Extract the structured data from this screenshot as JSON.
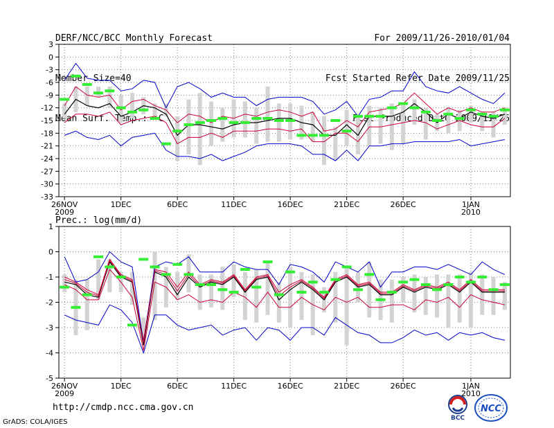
{
  "header": {
    "title": "DERF/NCC/BCC Monthly Forecast",
    "member_size": "Member Size=40",
    "variable1": "Mean Surf. Temp.: °C",
    "period": "For 2009/11/26-2010/01/04",
    "started": "Fcst Started Refer Date 2009/11/25",
    "produced": "Fcst Produced Date 2009/11/26"
  },
  "footer": {
    "url": "http://cmdp.ncc.cma.gov.cn",
    "grads": "GrADS: COLA/IGES",
    "logo_bcc_text": "BCC",
    "logo_ncc_text": "NCC"
  },
  "colors": {
    "envelope": "#0000cc",
    "spread": "#cc0033",
    "mean": "#000000",
    "observed": "#33ee33",
    "box": "#d3d3d3",
    "grid": "#777777"
  },
  "chart_data": [
    {
      "type": "line",
      "title": "Mean Surf. Temp.: °C",
      "x_ticks": [
        {
          "day": 0,
          "label": "26NOV",
          "sub": "2009"
        },
        {
          "day": 5,
          "label": "1DEC"
        },
        {
          "day": 10,
          "label": "6DEC"
        },
        {
          "day": 15,
          "label": "11DEC"
        },
        {
          "day": 20,
          "label": "16DEC"
        },
        {
          "day": 25,
          "label": "21DEC"
        },
        {
          "day": 30,
          "label": "26DEC"
        },
        {
          "day": 36,
          "label": "1JAN",
          "sub": "2010"
        }
      ],
      "xlim": [
        -0.5,
        39.5
      ],
      "ylim": [
        -33,
        3
      ],
      "y_ticks": [
        3,
        0,
        -3,
        -6,
        -9,
        -12,
        -15,
        -18,
        -21,
        -24,
        -27,
        -30,
        -33
      ],
      "grid": true,
      "series": [
        {
          "name": "max",
          "values": [
            -18.5,
            -17.5,
            -19,
            -19.5,
            -18.5,
            -21,
            -19,
            -18.5,
            -18,
            -22,
            -23.5,
            -23.5,
            -24,
            -23,
            -24.5,
            -23.5,
            -22.5,
            -21,
            -20.5,
            -20.5,
            -20.5,
            -21,
            -23,
            -23,
            -24.5,
            -22,
            -24.5,
            -21,
            -21,
            -20.5,
            -20.5,
            -20,
            -20,
            -20,
            -20,
            -19.5,
            -21,
            -20.5,
            -20,
            -19.5
          ]
        },
        {
          "name": "upper",
          "values": [
            -15.5,
            -13.5,
            -13.5,
            -14,
            -13,
            -16,
            -15,
            -14.5,
            -14,
            -15.5,
            -20.5,
            -19,
            -19,
            -18,
            -19,
            -17.5,
            -17.5,
            -17.5,
            -17,
            -17,
            -17.5,
            -17,
            -20,
            -20,
            -18,
            -18,
            -20,
            -16.5,
            -16.5,
            -16,
            -15.5,
            -15,
            -15.5,
            -17,
            -16,
            -15,
            -16,
            -16.5,
            -16.5,
            -14.5
          ]
        },
        {
          "name": "mean",
          "values": [
            -13.5,
            -10,
            -11.5,
            -12,
            -11,
            -14,
            -13,
            -11.5,
            -12,
            -13.5,
            -18.5,
            -16,
            -16,
            -16.5,
            -17,
            -16,
            -15.5,
            -15.5,
            -15,
            -14.5,
            -14.5,
            -15.5,
            -16,
            -18.5,
            -18.5,
            -16,
            -18.5,
            -14,
            -14,
            -14,
            -13,
            -11,
            -13,
            -15.5,
            -13.5,
            -14.5,
            -13,
            -14,
            -14.5,
            -13.5
          ]
        },
        {
          "name": "lower",
          "values": [
            -11.5,
            -7,
            -9,
            -9.5,
            -9,
            -12.5,
            -10.5,
            -10,
            -11.5,
            -12.5,
            -15.5,
            -13.5,
            -14,
            -15.5,
            -14,
            -14.5,
            -13.5,
            -14,
            -13,
            -12.5,
            -13,
            -14,
            -13,
            -17.5,
            -17,
            -15,
            -16.5,
            -13,
            -12.5,
            -12,
            -11,
            -8.5,
            -11,
            -13.5,
            -12,
            -13,
            -12,
            -13,
            -13,
            -12
          ]
        },
        {
          "name": "min",
          "values": [
            -5.5,
            -1.5,
            -5,
            -5.5,
            -5.5,
            -8,
            -7.5,
            -5.5,
            -6,
            -12,
            -7,
            -6,
            -7.5,
            -9.5,
            -8.5,
            -9.5,
            -9.5,
            -11.5,
            -10,
            -9.5,
            -9.5,
            -9.5,
            -10.5,
            -13.5,
            -12.5,
            -10.5,
            -14,
            -10,
            -9.5,
            -8,
            -8,
            -3.5,
            -7,
            -8,
            -8.5,
            -7,
            -8.5,
            -10,
            -11,
            -8.5
          ]
        }
      ],
      "box_low": [
        -14.5,
        -13,
        -11.5,
        -9.5,
        -12,
        -15.5,
        -14.5,
        -13.5,
        -14,
        -14,
        -24.5,
        -23,
        -25.5,
        -21,
        -20,
        -19,
        -19,
        -20.5,
        -20,
        -20,
        -19.5,
        -19.5,
        -20,
        -25.5,
        -24.5,
        -21,
        -23,
        -21,
        -20.5,
        -22,
        -20.5,
        -16,
        -19.5,
        -17.5,
        -18,
        -17.5,
        -15.5,
        -17.5,
        -19,
        -16
      ],
      "box_high": [
        -11,
        -7,
        -7,
        -7,
        -7,
        -9,
        -8.5,
        -9.5,
        -11,
        -11,
        -14,
        -10,
        -8.5,
        -10.5,
        -12,
        -10,
        -10.5,
        -12,
        -7,
        -11,
        -11,
        -11.5,
        -13,
        -14,
        -16.5,
        -12.5,
        -13.5,
        -11.5,
        -12,
        -11,
        -11,
        -10,
        -12,
        -13.5,
        -12,
        -12.5,
        -11.5,
        -13,
        -13,
        -12
      ],
      "observed": [
        -10,
        -4.5,
        -6.5,
        -8.5,
        -8,
        -12,
        -13,
        -12.5,
        -14.5,
        -20.5,
        -17.5,
        -16,
        -15.5,
        -15,
        -14.5,
        -15.5,
        -15.5,
        -14.5,
        -14.5,
        -15,
        -15,
        -18.5,
        -18.5,
        -18.5,
        -15,
        -17.5,
        -14,
        -14,
        -14,
        -12,
        -11,
        -12,
        -13,
        -15,
        -13.5,
        -14.5,
        -12.5,
        -13.5,
        -14,
        -12.5
      ]
    },
    {
      "type": "line",
      "title": "Prec.: log(mm/d)",
      "x_ticks": [
        {
          "day": 0,
          "label": "26NOV",
          "sub": "2009"
        },
        {
          "day": 5,
          "label": "1DEC"
        },
        {
          "day": 10,
          "label": "6DEC"
        },
        {
          "day": 15,
          "label": "11DEC"
        },
        {
          "day": 20,
          "label": "16DEC"
        },
        {
          "day": 25,
          "label": "21DEC"
        },
        {
          "day": 30,
          "label": "26DEC"
        },
        {
          "day": 36,
          "label": "1JAN",
          "sub": "2010"
        }
      ],
      "xlim": [
        -0.5,
        39.5
      ],
      "ylim": [
        -5,
        1
      ],
      "y_ticks": [
        1,
        0,
        -1,
        -2,
        -3,
        -4,
        -5
      ],
      "grid": true,
      "series": [
        {
          "name": "max",
          "values": [
            -2.5,
            -2.7,
            -2.8,
            -2.9,
            -2.1,
            -2.3,
            -2.8,
            -4,
            -2.5,
            -2.5,
            -2.9,
            -3.1,
            -3,
            -2.9,
            -3.3,
            -3.1,
            -3,
            -3.5,
            -3,
            -3.1,
            -3.5,
            -3,
            -3,
            -3.3,
            -2.6,
            -2.9,
            -3.2,
            -3.3,
            -3.6,
            -3.6,
            -3.4,
            -3.1,
            -3.3,
            -3.2,
            -3.5,
            -3.2,
            -3.3,
            -3.2,
            -3.4,
            -3.5
          ]
        },
        {
          "name": "upper",
          "values": [
            -1.3,
            -1.5,
            -1.9,
            -1.9,
            -0.7,
            -1.2,
            -1.8,
            -3.9,
            -1.2,
            -1.4,
            -1.9,
            -1.7,
            -2,
            -1.9,
            -2,
            -1.6,
            -1.8,
            -2.2,
            -1.6,
            -2.2,
            -2.2,
            -1.8,
            -2.1,
            -2.3,
            -1.8,
            -2,
            -1.8,
            -2.2,
            -2.2,
            -2.1,
            -2.1,
            -2.3,
            -1.9,
            -2,
            -1.8,
            -2.2,
            -1.7,
            -1.9,
            -2,
            -2.1
          ]
        },
        {
          "name": "mean",
          "values": [
            -1.2,
            -1.3,
            -1.7,
            -1.8,
            -0.4,
            -1,
            -1.2,
            -3.7,
            -0.8,
            -1,
            -1.7,
            -1,
            -1.4,
            -1.2,
            -1.3,
            -1,
            -1.6,
            -1.1,
            -1,
            -1.9,
            -1.5,
            -1.2,
            -1.5,
            -1.9,
            -1.2,
            -1,
            -1.4,
            -1.3,
            -1.7,
            -1.7,
            -1.4,
            -1.6,
            -1.4,
            -1.5,
            -1.3,
            -1.6,
            -1.2,
            -1.6,
            -1.6,
            -1.6
          ]
        },
        {
          "name": "lower",
          "values": [
            -1,
            -1.2,
            -1.5,
            -1.7,
            -0.3,
            -0.9,
            -1.1,
            -3.5,
            -0.7,
            -0.8,
            -1.4,
            -0.8,
            -1.3,
            -1.1,
            -1.2,
            -0.9,
            -1.5,
            -1,
            -0.9,
            -1.6,
            -1.3,
            -1.1,
            -1.4,
            -1.8,
            -1.1,
            -0.9,
            -1.3,
            -1.2,
            -1.6,
            -1.6,
            -1.3,
            -1.5,
            -1.3,
            -1.4,
            -1.2,
            -1.5,
            -1.1,
            -1.5,
            -1.5,
            -1.5
          ]
        },
        {
          "name": "min",
          "values": [
            -0.2,
            -1.2,
            -1.1,
            -0.8,
            0,
            -0.4,
            -0.6,
            -3.6,
            -0.6,
            -0.4,
            -0.5,
            -0.2,
            -0.8,
            -0.8,
            -0.8,
            -0.4,
            -0.6,
            -0.7,
            -0.7,
            -1.3,
            -0.5,
            -0.6,
            -0.8,
            -1.2,
            -0.4,
            -0.6,
            -0.8,
            -0.4,
            -1.4,
            -0.8,
            -0.8,
            -0.6,
            -0.6,
            -0.7,
            -0.5,
            -0.7,
            -0.9,
            -0.4,
            -0.7,
            -0.9
          ]
        },
        {
          "name": "inner_upper",
          "values": [
            -1.1,
            -1.25,
            -1.6,
            -1.75,
            -0.35,
            -0.95,
            -1.15,
            -3.6,
            -0.75,
            -0.9,
            -1.55,
            -0.9,
            -1.35,
            -1.15,
            -1.25,
            -0.95,
            -1.55,
            -1.05,
            -0.95,
            -1.75,
            -1.4,
            -1.15,
            -1.45,
            -1.85,
            -1.15,
            -0.95,
            -1.35,
            -1.25,
            -1.65,
            -1.65,
            -1.35,
            -1.55,
            -1.35,
            -1.45,
            -1.25,
            -1.55,
            -1.15,
            -1.55,
            -1.55,
            -1.55
          ]
        }
      ],
      "box_low": [
        -1.6,
        -3.3,
        -3.1,
        -1.9,
        -1.6,
        -1.6,
        -2.1,
        -3.5,
        -2.7,
        -2.2,
        -1.9,
        -1.6,
        -2.3,
        -2.2,
        -2.3,
        -1.8,
        -2.7,
        -2.8,
        -2.5,
        -2.8,
        -3,
        -2.7,
        -3.3,
        -2.4,
        -2.8,
        -3.7,
        -2,
        -2.6,
        -2.7,
        -2.8,
        -2,
        -2.4,
        -2.5,
        -2.6,
        -3,
        -2.8,
        -3,
        -2.5,
        -2.5,
        -2.3
      ],
      "box_high": [
        -0.9,
        -1.1,
        -1.1,
        -0.3,
        -0.3,
        -0.8,
        -0.8,
        -2.6,
        0,
        -0.6,
        -0.8,
        -0.1,
        -0.9,
        -0.9,
        -0.6,
        -0.5,
        -0.8,
        -0.7,
        -0.4,
        -1.2,
        -0.6,
        -0.8,
        -0.9,
        -1.4,
        -0.8,
        -0.6,
        -0.8,
        -0.4,
        -1.1,
        -1.1,
        -1,
        -0.9,
        -1,
        -0.9,
        -0.9,
        -0.9,
        -0.8,
        -0.9,
        -1,
        -1.2
      ],
      "observed": [
        -1.4,
        -2.2,
        -1.7,
        -0.2,
        -0.6,
        -1,
        -2.9,
        -0.3,
        -0.6,
        -0.9,
        -0.5,
        -0.9,
        -1.3,
        -1.3,
        -1.5,
        -1.6,
        -0.7,
        -1.4,
        -0.4,
        -1.7,
        -0.8,
        -1.6,
        -1.2,
        -1.6,
        -1.1,
        -0.6,
        -1.5,
        -0.9,
        -1.9,
        -1.6,
        -1.2,
        -1.1,
        -1.3,
        -1.5,
        -1.3,
        -1,
        -1.2,
        -1,
        -1.5,
        -1.3
      ]
    }
  ]
}
